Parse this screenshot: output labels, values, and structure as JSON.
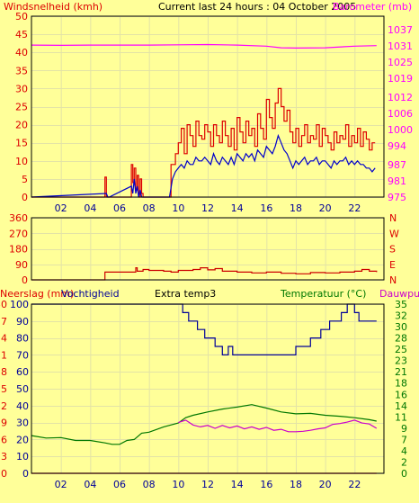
{
  "header": {
    "left_label": "Windsnelheid (kmh)",
    "title": "Current last 24 hours : 04 October 2005",
    "right_label": "Barometer (mb)"
  },
  "colors": {
    "background": "#ffff99",
    "grid": "#e3e3a6",
    "frame": "#000000",
    "wind_gust": "#dd0000",
    "wind_avg": "#0000cc",
    "barometer": "#ff00ff",
    "direction": "#cc0000",
    "humidity": "#000099",
    "rain": "#ff0000",
    "temperature": "#007700",
    "dewpoint": "#cc00cc"
  },
  "chart_data": [
    {
      "type": "line",
      "title": "Current last 24 hours : 04 October 2005",
      "ylabel": "Windsnelheid (kmh)",
      "y2label": "Barometer (mb)",
      "xlim": [
        0,
        24
      ],
      "ylim": [
        0,
        50
      ],
      "y2lim": [
        975,
        1042
      ],
      "x_ticks": [
        2,
        4,
        6,
        8,
        10,
        12,
        14,
        16,
        18,
        20,
        22
      ],
      "x_tick_labels": [
        "02",
        "04",
        "06",
        "08",
        "10",
        "12",
        "14",
        "16",
        "18",
        "20",
        "22"
      ],
      "y_ticks": [
        0,
        5,
        10,
        15,
        20,
        25,
        30,
        35,
        40,
        45,
        50
      ],
      "y2_ticks": [
        975,
        981,
        987,
        994,
        1000,
        1006,
        1012,
        1019,
        1025,
        1031,
        1037
      ],
      "grid": true,
      "series": [
        {
          "name": "Windsnelheid (kmh)",
          "style": "step",
          "color_key": "wind_gust",
          "x": [
            0,
            5.0,
            5.1,
            5.2,
            6.8,
            6.9,
            7.0,
            7.1,
            7.2,
            7.3,
            7.4,
            7.5,
            7.6,
            9.3,
            9.5,
            9.8,
            10.0,
            10.2,
            10.4,
            10.6,
            10.8,
            11.0,
            11.2,
            11.4,
            11.6,
            11.8,
            12.0,
            12.2,
            12.4,
            12.6,
            12.8,
            13.0,
            13.2,
            13.4,
            13.6,
            13.8,
            14.0,
            14.2,
            14.4,
            14.6,
            14.8,
            15.0,
            15.2,
            15.4,
            15.6,
            15.8,
            16.0,
            16.2,
            16.4,
            16.6,
            16.8,
            17.0,
            17.2,
            17.4,
            17.6,
            17.8,
            18.0,
            18.2,
            18.4,
            18.6,
            18.8,
            19.0,
            19.2,
            19.4,
            19.6,
            19.8,
            20.0,
            20.2,
            20.4,
            20.6,
            20.8,
            21.0,
            21.2,
            21.4,
            21.6,
            21.8,
            22.0,
            22.2,
            22.4,
            22.6,
            22.8,
            23.0,
            23.2,
            23.4
          ],
          "y": [
            0,
            5.5,
            0,
            0,
            9,
            4,
            8,
            2,
            6,
            0,
            5,
            1,
            0,
            0,
            9,
            12,
            15,
            19,
            12,
            20,
            17,
            14,
            21,
            17,
            16,
            20,
            18,
            14,
            20,
            17,
            15,
            21,
            17,
            14,
            19,
            13,
            22,
            18,
            15,
            21,
            17,
            19,
            14,
            23,
            19,
            16,
            27,
            22,
            19,
            26,
            30,
            25,
            21,
            24,
            18,
            15,
            19,
            14,
            17,
            20,
            15,
            17,
            16,
            20,
            14,
            19,
            17,
            15,
            13,
            18,
            15,
            17,
            16,
            20,
            14,
            17,
            15,
            19,
            14,
            18,
            16,
            13,
            15,
            15
          ]
        },
        {
          "name": "Windsnelheid gemiddeld",
          "style": "line",
          "color_key": "wind_avg",
          "x": [
            0,
            5.1,
            5.2,
            5.3,
            6.8,
            6.9,
            7.0,
            7.1,
            7.2,
            7.3,
            7.4,
            7.5,
            7.6,
            9.4,
            9.6,
            9.8,
            10.0,
            10.2,
            10.4,
            10.6,
            10.8,
            11.0,
            11.2,
            11.4,
            11.6,
            11.8,
            12.0,
            12.2,
            12.4,
            12.6,
            12.8,
            13.0,
            13.2,
            13.4,
            13.6,
            13.8,
            14.0,
            14.2,
            14.4,
            14.6,
            14.8,
            15.0,
            15.2,
            15.4,
            15.6,
            15.8,
            16.0,
            16.2,
            16.4,
            16.6,
            16.8,
            17.0,
            17.2,
            17.4,
            17.6,
            17.8,
            18.0,
            18.2,
            18.4,
            18.6,
            18.8,
            19.0,
            19.2,
            19.4,
            19.6,
            19.8,
            20.0,
            20.2,
            20.4,
            20.6,
            20.8,
            21.0,
            21.2,
            21.4,
            21.6,
            21.8,
            22.0,
            22.2,
            22.4,
            22.6,
            22.8,
            23.0,
            23.2,
            23.4
          ],
          "y": [
            0,
            1,
            0,
            0,
            3,
            1,
            5,
            1,
            3,
            0,
            2,
            0,
            0,
            0,
            5,
            7,
            8,
            9,
            8,
            10,
            9,
            9,
            11,
            10,
            10,
            11,
            10,
            9,
            12,
            10,
            9,
            11,
            10,
            9,
            11,
            9,
            12,
            11,
            10,
            12,
            11,
            12,
            10,
            13,
            12,
            11,
            14,
            13,
            12,
            14,
            17,
            15,
            13,
            12,
            10,
            8,
            10,
            9,
            10,
            11,
            9,
            10,
            10,
            11,
            9,
            10,
            10,
            9,
            8,
            10,
            9,
            10,
            10,
            11,
            9,
            10,
            9,
            10,
            9,
            9,
            8,
            8,
            7,
            8
          ]
        },
        {
          "name": "Barometer (mb)",
          "style": "line",
          "axis": "y2",
          "color_key": "barometer",
          "x": [
            0,
            2,
            4,
            6,
            8,
            10,
            12,
            14,
            16,
            17,
            18,
            20,
            22,
            23.5
          ],
          "y": [
            1031.3,
            1031.2,
            1031.3,
            1031.3,
            1031.3,
            1031.4,
            1031.5,
            1031.3,
            1030.9,
            1030.3,
            1030.2,
            1030.3,
            1030.9,
            1031.1
          ]
        }
      ]
    },
    {
      "type": "line",
      "xlim": [
        0,
        24
      ],
      "ylim": [
        0,
        360
      ],
      "y_ticks": [
        0,
        90,
        180,
        270,
        360
      ],
      "right_tick_labels": [
        "N",
        "E",
        "S",
        "W",
        "N"
      ],
      "grid": true,
      "series": [
        {
          "style": "step",
          "color_key": "direction",
          "x": [
            0,
            5.0,
            5.0,
            7.0,
            7.1,
            7.2,
            7.6,
            8.0,
            9.0,
            9.5,
            10.0,
            11.0,
            11.5,
            12.0,
            12.5,
            13.0,
            14.0,
            15.0,
            16.0,
            17.0,
            18.0,
            19.0,
            20.0,
            21.0,
            22.0,
            22.5,
            23.0,
            23.5
          ],
          "y": [
            0,
            0,
            45,
            45,
            70,
            50,
            60,
            55,
            50,
            45,
            55,
            60,
            70,
            58,
            65,
            50,
            45,
            40,
            45,
            38,
            35,
            42,
            40,
            45,
            50,
            60,
            50,
            45
          ]
        }
      ]
    },
    {
      "type": "line",
      "xlim": [
        0,
        24
      ],
      "ylim": [
        0,
        100
      ],
      "y_ticks": [
        0,
        10,
        20,
        30,
        40,
        50,
        60,
        70,
        80,
        90,
        100
      ],
      "y_tick_labels": [
        "0",
        "10",
        "20",
        "30",
        "40",
        "50",
        "60",
        "70",
        "80",
        "90",
        "100"
      ],
      "left_outer_tick_labels": [
        "0",
        "3",
        "6",
        "9",
        "12",
        "15",
        "18",
        "21",
        "24",
        "27",
        "30"
      ],
      "left_outer_label": "Neerslag (mm)",
      "left_inner_label": "Vochtigheid",
      "center_label": "Extra temp3",
      "right_label_a": "Temperatuur (°C)",
      "right_label_b": "Dauwpunt",
      "y2lim": [
        0,
        35
      ],
      "right_tick_labels": [
        "0",
        "2",
        "4",
        "7",
        "9",
        "11",
        "14",
        "16",
        "18",
        "21",
        "23",
        "25",
        "28",
        "30",
        "32",
        "35"
      ],
      "grid": true,
      "series": [
        {
          "name": "Vochtigheid",
          "style": "step",
          "color_key": "humidity",
          "x": [
            0,
            10.0,
            10.3,
            10.7,
            11.3,
            11.8,
            12.5,
            13.0,
            13.4,
            13.7,
            17.5,
            18.0,
            19.0,
            19.7,
            20.3,
            21.1,
            21.5,
            21.7,
            22.0,
            22.3,
            22.6,
            23.5
          ],
          "y": [
            100,
            100,
            95,
            90,
            85,
            80,
            75,
            70,
            75,
            70,
            70,
            75,
            80,
            85,
            90,
            95,
            100,
            100,
            95,
            90,
            90,
            90
          ]
        },
        {
          "name": "Neerslag (mm)",
          "style": "line",
          "color_key": "rain",
          "x": [
            0,
            23.5
          ],
          "y": [
            0,
            0
          ]
        },
        {
          "name": "Temperatuur (°C)",
          "style": "line",
          "axis": "y2",
          "color_key": "temperature",
          "x": [
            0,
            1,
            2,
            3,
            4,
            5,
            5.5,
            6,
            6.5,
            7,
            7.5,
            8,
            9,
            10,
            10.5,
            11,
            12,
            13,
            14,
            15,
            16,
            17,
            18,
            19,
            20,
            21,
            22,
            23,
            23.5
          ],
          "y": [
            7.8,
            7.3,
            7.4,
            6.8,
            6.8,
            6.3,
            6.0,
            6.0,
            6.8,
            7.0,
            8.3,
            8.5,
            9.6,
            10.4,
            11.5,
            12.0,
            12.7,
            13.3,
            13.7,
            14.2,
            13.5,
            12.7,
            12.3,
            12.4,
            12.0,
            11.8,
            11.5,
            11.1,
            10.8
          ]
        },
        {
          "name": "Dauwpunt",
          "style": "line",
          "axis": "y2",
          "color_key": "dewpoint",
          "x": [
            10.0,
            10.5,
            11.0,
            11.5,
            12.0,
            12.5,
            13.0,
            13.5,
            14.0,
            14.5,
            15.0,
            15.5,
            16.0,
            16.5,
            17.0,
            17.5,
            18.0,
            18.5,
            19.0,
            19.5,
            20.0,
            20.5,
            21.0,
            21.5,
            22.0,
            22.5,
            23.0,
            23.5
          ],
          "y": [
            10.5,
            11.0,
            10.0,
            9.6,
            9.9,
            9.3,
            9.9,
            9.4,
            9.8,
            9.2,
            9.6,
            9.1,
            9.5,
            8.9,
            9.1,
            8.6,
            8.6,
            8.7,
            8.9,
            9.2,
            9.4,
            10.1,
            10.3,
            10.6,
            11.0,
            10.4,
            10.2,
            9.3
          ]
        }
      ]
    }
  ]
}
